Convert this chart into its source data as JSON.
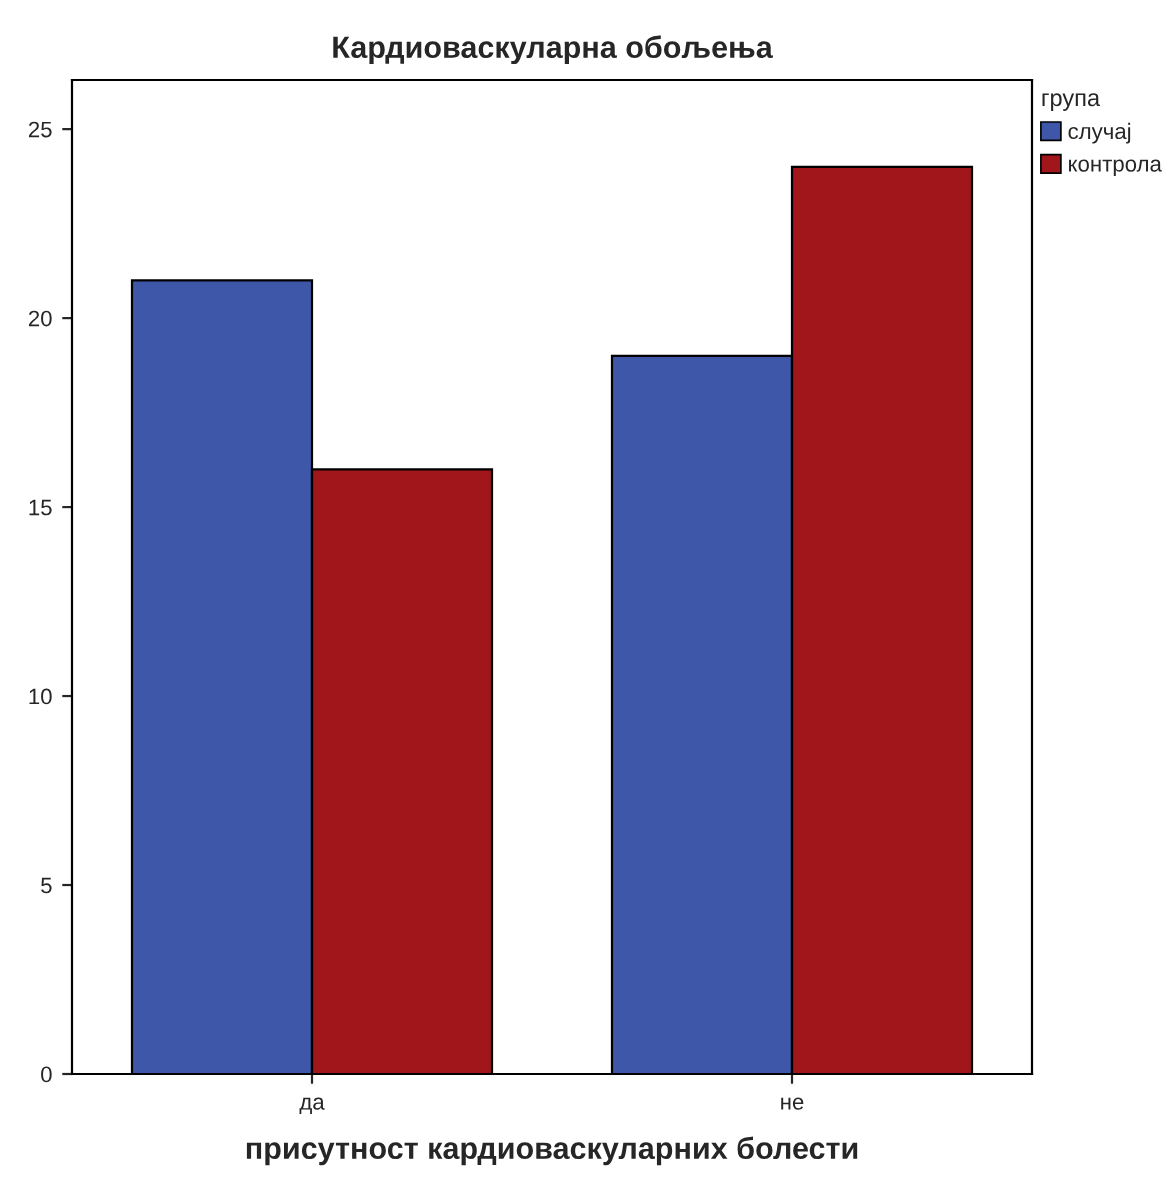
{
  "chart_data": {
    "type": "bar",
    "title": "Кардиоваскуларна обољења",
    "xlabel": "присутност кардиоваскуларних болести",
    "categories": [
      "да",
      "не"
    ],
    "series": [
      {
        "name": "случај",
        "color": "#3f57a8",
        "values": [
          21,
          19
        ]
      },
      {
        "name": "контрола",
        "color": "#a0161a",
        "values": [
          16,
          24
        ]
      }
    ],
    "legend_title": "група",
    "legend": "top right",
    "ylim": [
      0,
      26.3
    ],
    "yticks": [
      0,
      5,
      10,
      15,
      20,
      25
    ],
    "grid": false
  }
}
